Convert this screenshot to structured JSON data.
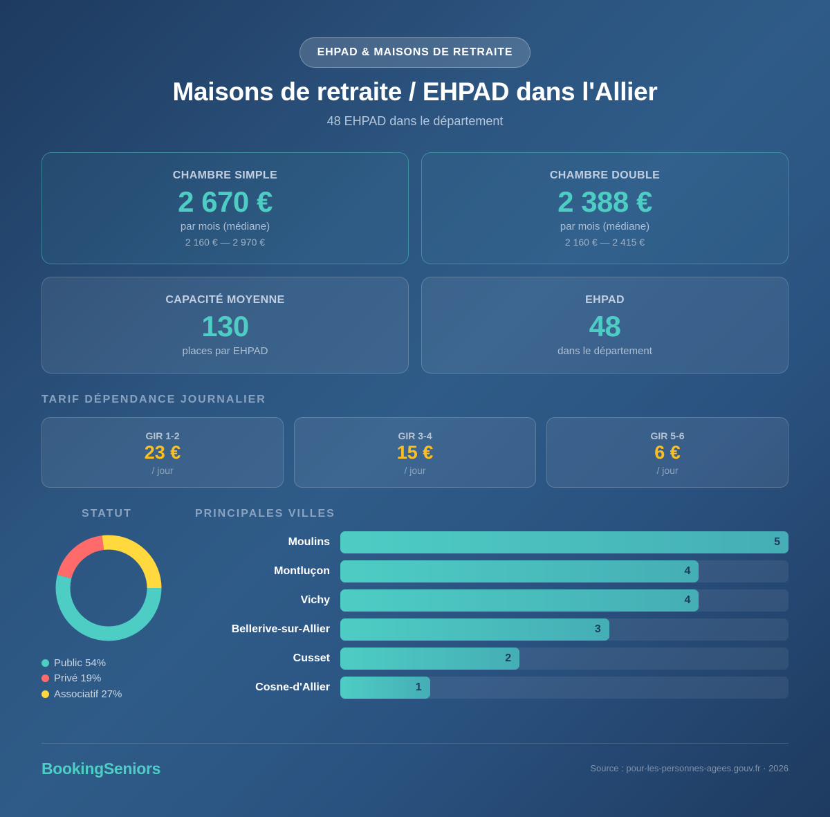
{
  "header": {
    "badge": "EHPAD & MAISONS DE RETRAITE",
    "title": "Maisons de retraite / EHPAD dans l'Allier",
    "subtitle": "48 EHPAD dans le département"
  },
  "cards": [
    {
      "label": "CHAMBRE SIMPLE",
      "value": "2 670 €",
      "sub": "par mois (médiane)",
      "range": "2 160 € — 2 970 €"
    },
    {
      "label": "CHAMBRE DOUBLE",
      "value": "2 388 €",
      "sub": "par mois (médiane)",
      "range": "2 160 € — 2 415 €"
    },
    {
      "label": "CAPACITÉ MOYENNE",
      "value": "130",
      "sub": "places par EHPAD"
    },
    {
      "label": "EHPAD",
      "value": "48",
      "sub": "dans le département"
    }
  ],
  "dependance": {
    "title": "TARIF DÉPENDANCE JOURNALIER",
    "items": [
      {
        "label": "GIR 1-2",
        "value": "23 €",
        "sub": "/ jour"
      },
      {
        "label": "GIR 3-4",
        "value": "15 €",
        "sub": "/ jour"
      },
      {
        "label": "GIR 5-6",
        "value": "6 €",
        "sub": "/ jour"
      }
    ]
  },
  "statut": {
    "title": "STATUT",
    "legend": [
      {
        "label": "Public 54%",
        "color": "#4ecdc4"
      },
      {
        "label": "Privé 19%",
        "color": "#ff6b6b"
      },
      {
        "label": "Associatif 27%",
        "color": "#ffd93d"
      }
    ]
  },
  "villes": {
    "title": "PRINCIPALES VILLES"
  },
  "chart_data": [
    {
      "type": "pie",
      "title": "STATUT",
      "donut": true,
      "categories": [
        "Public",
        "Privé",
        "Associatif"
      ],
      "values": [
        54,
        19,
        27
      ],
      "unit": "%",
      "colors": [
        "#4ecdc4",
        "#ff6b6b",
        "#ffd93d"
      ],
      "legend_position": "bottom"
    },
    {
      "type": "bar",
      "orientation": "horizontal",
      "title": "PRINCIPALES VILLES",
      "categories": [
        "Moulins",
        "Montluçon",
        "Vichy",
        "Bellerive-sur-Allier",
        "Cusset",
        "Cosne-d'Allier"
      ],
      "values": [
        5,
        4,
        4,
        3,
        2,
        1
      ],
      "xlim": [
        0,
        5
      ],
      "bar_color": "#4ecdc4",
      "data_labels": true,
      "grid": false
    }
  ],
  "footer": {
    "brand": "BookingSeniors",
    "source": "Source : pour-les-personnes-agees.gouv.fr · 2026"
  },
  "colors": {
    "accent": "#4ecdc4",
    "gold": "#fbbf24",
    "background": "#1e3a5f"
  }
}
